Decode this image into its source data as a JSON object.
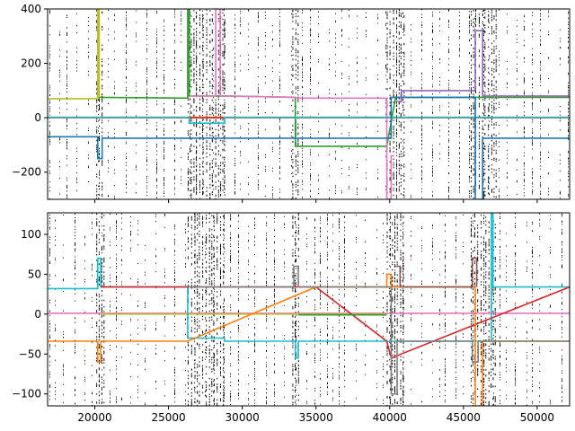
{
  "chart_data": [
    {
      "type": "line",
      "title": "",
      "xlabel": "",
      "ylabel": "",
      "xlim": [
        16800,
        52200
      ],
      "ylim": [
        -300,
        400
      ],
      "xticks": [
        20000,
        25000,
        30000,
        35000,
        40000,
        45000,
        50000
      ],
      "yticks": [
        -200,
        0,
        200,
        400
      ],
      "ytick_labels": [
        "−200",
        "0",
        "200",
        "400"
      ],
      "show_xtick_labels": false,
      "grid": false,
      "legend": "none",
      "background_noise": "dense black point scatter",
      "series": [
        {
          "color": "#ff7f0e",
          "x": [
            16800,
            52200
          ],
          "y": [
            2,
            2
          ]
        },
        {
          "color": "#d62728",
          "x": [
            16800,
            52200
          ],
          "y": [
            0,
            0
          ]
        },
        {
          "color": "#bcbd22",
          "x": [
            16800,
            20200,
            20200,
            20300,
            20300
          ],
          "y": [
            70,
            70,
            400,
            400,
            70
          ]
        },
        {
          "color": "#2ca02c",
          "x": [
            20300,
            26300,
            26300,
            26400,
            26400,
            29000,
            33600,
            33600,
            39800,
            40400,
            52200
          ],
          "y": [
            75,
            72,
            400,
            400,
            80,
            80,
            75,
            -105,
            -105,
            75,
            75
          ]
        },
        {
          "color": "#e377c2",
          "x": [
            26400,
            28200,
            28200,
            28500,
            28500,
            33600,
            33700,
            39800,
            39800,
            40100,
            40100,
            40300
          ],
          "y": [
            80,
            80,
            400,
            400,
            80,
            75,
            72,
            72,
            -300,
            -300,
            -140,
            -140
          ]
        },
        {
          "color": "#17becf",
          "x": [
            16800,
            26400,
            26400,
            28800,
            28800,
            52200
          ],
          "y": [
            1,
            1,
            -20,
            -20,
            1,
            1
          ]
        },
        {
          "color": "#1f77b4",
          "x": [
            16800,
            20200,
            20200,
            20500,
            20500,
            26300,
            40100,
            40100,
            45800,
            45800,
            46300,
            46300,
            52200
          ],
          "y": [
            -70,
            -70,
            -150,
            -150,
            -75,
            -75,
            -75,
            75,
            75,
            -300,
            -300,
            -75,
            -75
          ]
        },
        {
          "color": "#9467bd",
          "x": [
            40400,
            40800,
            40800,
            45800,
            45800,
            46300,
            46300,
            52200
          ],
          "y": [
            60,
            60,
            100,
            100,
            320,
            320,
            80,
            80
          ]
        }
      ]
    },
    {
      "type": "line",
      "title": "",
      "xlabel": "",
      "ylabel": "",
      "xlim": [
        16800,
        52200
      ],
      "ylim": [
        -115,
        127
      ],
      "xticks": [
        20000,
        25000,
        30000,
        35000,
        40000,
        45000,
        50000
      ],
      "xtick_labels": [
        "20000",
        "25000",
        "30000",
        "35000",
        "40000",
        "45000",
        "50000"
      ],
      "yticks": [
        -100,
        -50,
        0,
        50,
        100
      ],
      "ytick_labels": [
        "−100",
        "−50",
        "0",
        "50",
        "100"
      ],
      "grid": false,
      "legend": "none",
      "background_noise": "dense black point scatter",
      "series": [
        {
          "color": "#e377c2",
          "x": [
            16800,
            52200
          ],
          "y": [
            1,
            1
          ]
        },
        {
          "color": "#bcbd22",
          "x": [
            20400,
            39800
          ],
          "y": [
            0,
            0
          ]
        },
        {
          "color": "#17becf",
          "x": [
            16800,
            20200,
            20200,
            20400,
            20400,
            26300,
            26300,
            28800,
            28800,
            33600,
            33600,
            33800,
            33800,
            46900,
            46900,
            47000,
            47000,
            52200
          ],
          "y": [
            32,
            32,
            70,
            70,
            34,
            34,
            -30,
            -30,
            -34,
            -34,
            -55,
            -55,
            -34,
            -34,
            127,
            127,
            34,
            34
          ]
        },
        {
          "color": "#d62728",
          "x": [
            20400,
            26300,
            26300,
            35000,
            39800,
            39800,
            40100,
            40100,
            52200
          ],
          "y": [
            34,
            34,
            34,
            34,
            -34,
            -34,
            -55,
            -55,
            34
          ]
        },
        {
          "color": "#ff7f0e",
          "x": [
            16800,
            20200,
            20200,
            20400,
            20400,
            26300,
            35000,
            35000,
            39800,
            39800,
            40100,
            40100,
            45800,
            45800,
            46300,
            46300,
            52200
          ],
          "y": [
            -34,
            -34,
            -60,
            -60,
            -34,
            -34,
            34,
            34,
            34,
            50,
            50,
            34,
            34,
            -115,
            -115,
            -34,
            -34
          ]
        },
        {
          "color": "#7f7f7f",
          "x": [
            26300,
            28800,
            33500,
            33500,
            33800,
            33800,
            40100,
            40100,
            40500,
            40500,
            45600,
            45600,
            46000,
            46000,
            52200
          ],
          "y": [
            34,
            34,
            34,
            60,
            60,
            34,
            34,
            -100,
            -100,
            -34,
            -34,
            -60,
            -60,
            -34,
            -34
          ]
        },
        {
          "color": "#2ca02c",
          "x": [
            33800,
            39800
          ],
          "y": [
            -1,
            -1
          ]
        },
        {
          "color": "#8c564b",
          "x": [
            40400,
            40700,
            40700,
            45600,
            45600,
            45900,
            45900
          ],
          "y": [
            60,
            60,
            34,
            34,
            70,
            70,
            34
          ]
        }
      ]
    }
  ]
}
